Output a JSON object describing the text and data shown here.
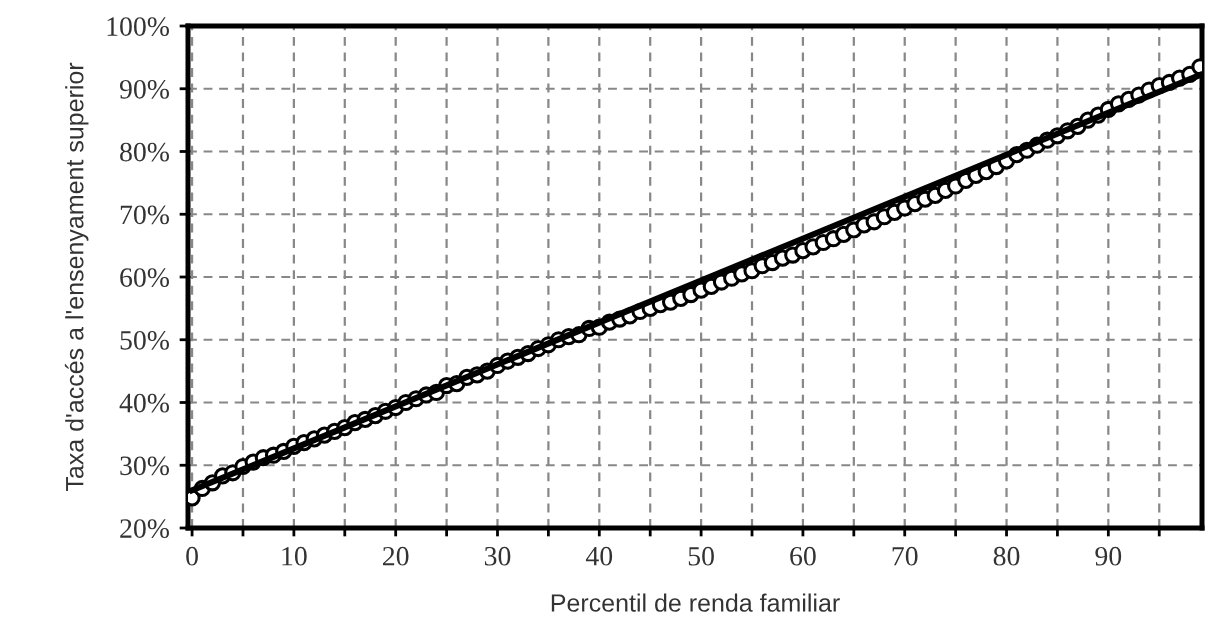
{
  "chart_data": {
    "type": "scatter",
    "xlabel": "Percentil de renda familiar",
    "ylabel": "Taxa d'accés a l'ensenyament superior",
    "xlim": [
      -0.4,
      99.2
    ],
    "ylim": [
      20,
      100
    ],
    "xticks": [
      0,
      {
        "value": 5,
        "label": null
      },
      10,
      {
        "value": 15,
        "label": null
      },
      20,
      {
        "value": 25,
        "label": null
      },
      30,
      {
        "value": 35,
        "label": null
      },
      40,
      {
        "value": 45,
        "label": null
      },
      50,
      {
        "value": 55,
        "label": null
      },
      60,
      {
        "value": 65,
        "label": null
      },
      70,
      {
        "value": 75,
        "label": null
      },
      80,
      {
        "value": 85,
        "label": null
      },
      90,
      {
        "value": 95,
        "label": null
      }
    ],
    "yticks": [
      {
        "value": 20,
        "label": "20%"
      },
      {
        "value": 30,
        "label": "30%"
      },
      {
        "value": 40,
        "label": "40%"
      },
      {
        "value": 50,
        "label": "50%"
      },
      {
        "value": 60,
        "label": "60%"
      },
      {
        "value": 70,
        "label": "70%"
      },
      {
        "value": 80,
        "label": "80%"
      },
      {
        "value": 90,
        "label": "90%"
      },
      {
        "value": 100,
        "label": "100%"
      }
    ],
    "grid": true,
    "series": [
      {
        "marker": "circle",
        "color": "#000000",
        "x": [
          0,
          1,
          2,
          3,
          4,
          5,
          6,
          7,
          8,
          9,
          10,
          11,
          12,
          13,
          14,
          15,
          16,
          17,
          18,
          19,
          20,
          21,
          22,
          23,
          24,
          25,
          26,
          27,
          28,
          29,
          30,
          31,
          32,
          33,
          34,
          35,
          36,
          37,
          38,
          39,
          40,
          41,
          42,
          43,
          44,
          45,
          46,
          47,
          48,
          49,
          50,
          51,
          52,
          53,
          54,
          55,
          56,
          57,
          58,
          59,
          60,
          61,
          62,
          63,
          64,
          65,
          66,
          67,
          68,
          69,
          70,
          71,
          72,
          73,
          74,
          75,
          76,
          77,
          78,
          79,
          80,
          81,
          82,
          83,
          84,
          85,
          86,
          87,
          88,
          89,
          90,
          91,
          92,
          93,
          94,
          95,
          96,
          97,
          98,
          99
        ],
        "values": [
          24.8,
          26.3,
          27.2,
          28.3,
          28.8,
          29.8,
          30.5,
          31.2,
          31.6,
          32.2,
          33.0,
          33.6,
          34.2,
          34.8,
          35.4,
          36.0,
          36.8,
          37.3,
          37.9,
          38.6,
          39.2,
          40.0,
          40.6,
          41.2,
          41.6,
          42.7,
          43.0,
          44.0,
          44.4,
          45.0,
          45.9,
          46.6,
          47.2,
          47.8,
          48.6,
          49.2,
          50.0,
          50.5,
          50.8,
          51.8,
          52.0,
          52.8,
          53.3,
          53.8,
          54.5,
          55.0,
          55.6,
          56.0,
          56.6,
          57.2,
          57.9,
          58.5,
          59.2,
          59.8,
          60.5,
          61.0,
          61.8,
          62.3,
          63.0,
          63.5,
          64.2,
          64.8,
          65.5,
          66.1,
          66.8,
          67.5,
          68.3,
          68.8,
          69.6,
          70.3,
          71.0,
          71.7,
          72.4,
          73.0,
          73.8,
          74.5,
          75.4,
          76.2,
          76.8,
          77.6,
          78.5,
          79.5,
          80.2,
          81.0,
          81.8,
          82.5,
          83.3,
          84.0,
          85.0,
          85.8,
          86.7,
          87.6,
          88.3,
          89.0,
          89.8,
          90.5,
          91.0,
          91.7,
          92.3,
          93.5
        ]
      },
      {
        "type": "line",
        "marker": "none",
        "color": "#000000",
        "x": [
          0,
          99
        ],
        "values": [
          26.0,
          92.2
        ]
      }
    ]
  }
}
